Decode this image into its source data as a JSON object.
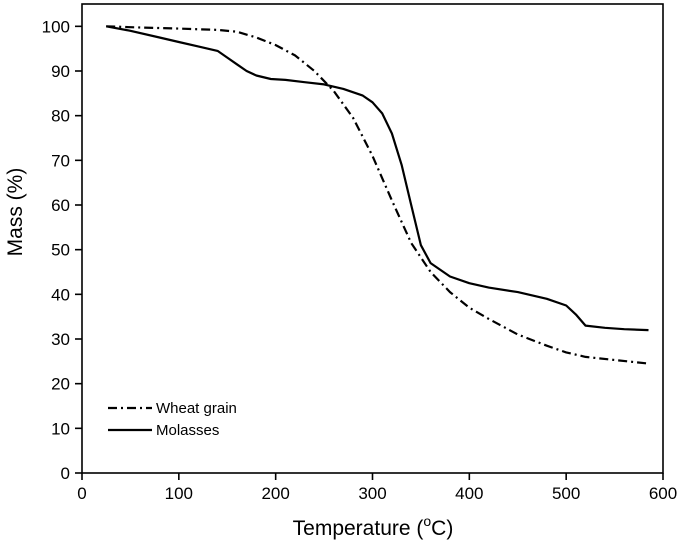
{
  "chart_data": {
    "type": "line",
    "title": "",
    "xlabel": {
      "main": "Temperature (",
      "sup": "o",
      "unit": "C)"
    },
    "ylabel": "Mass (%)",
    "xlim": [
      0,
      600
    ],
    "ylim": [
      0,
      105
    ],
    "xticks": [
      "0",
      "100",
      "200",
      "300",
      "400",
      "500",
      "600"
    ],
    "yticks": [
      "0",
      "10",
      "20",
      "30",
      "40",
      "50",
      "60",
      "70",
      "80",
      "90",
      "100"
    ],
    "xtick_values": [
      0,
      100,
      200,
      300,
      400,
      500,
      600
    ],
    "ytick_values": [
      0,
      10,
      20,
      30,
      40,
      50,
      60,
      70,
      80,
      90,
      100
    ],
    "grid": false,
    "legend_position": "bottom-left",
    "series": [
      {
        "name": "Wheat grain",
        "style": "dash-dot",
        "color": "#000000",
        "x": [
          25,
          50,
          100,
          140,
          160,
          180,
          200,
          220,
          240,
          260,
          280,
          300,
          320,
          340,
          360,
          380,
          400,
          420,
          450,
          480,
          500,
          520,
          550,
          585
        ],
        "y": [
          100,
          99.8,
          99.5,
          99.2,
          98.8,
          97.5,
          95.8,
          93.5,
          90,
          85.5,
          79.5,
          71,
          61,
          51.5,
          45,
          40.5,
          37,
          34.5,
          31,
          28.5,
          27,
          26,
          25.3,
          24.5
        ]
      },
      {
        "name": "Molasses",
        "style": "solid",
        "color": "#000000",
        "x": [
          25,
          50,
          80,
          100,
          120,
          140,
          150,
          160,
          170,
          180,
          195,
          210,
          230,
          250,
          270,
          290,
          300,
          310,
          320,
          330,
          340,
          350,
          360,
          380,
          400,
          420,
          450,
          480,
          500,
          510,
          520,
          540,
          560,
          585
        ],
        "y": [
          100,
          99,
          97.5,
          96.5,
          95.5,
          94.5,
          93,
          91.5,
          90,
          89,
          88.2,
          88,
          87.5,
          87,
          86,
          84.5,
          83,
          80.5,
          76,
          69,
          60,
          51,
          47,
          44,
          42.5,
          41.5,
          40.5,
          39,
          37.5,
          35.5,
          33,
          32.5,
          32.2,
          32
        ]
      }
    ]
  }
}
